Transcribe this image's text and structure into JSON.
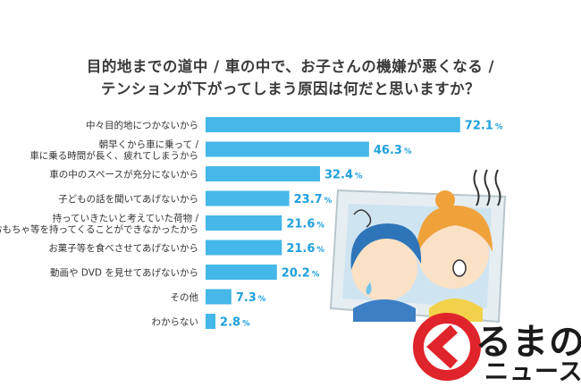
{
  "title_lines": [
    "目的地までの道中 / 車の中で、お子さんの機嫌が悪くなる /",
    "テンションが下がってしまう原因は何だと思いますか？"
  ],
  "chart_data": {
    "type": "bar",
    "orientation": "horizontal",
    "categories": [
      [
        "中々目的地につかないから"
      ],
      [
        "朝早くから車に乗って /",
        "車に乗る時間が長く、疲れてしまうから"
      ],
      [
        "車の中のスペースが充分にないから"
      ],
      [
        "子どもの話を聞いてあげないから"
      ],
      [
        "持っていきたいと考えていた荷物 /",
        "おもちゃ等を持ってくることができなかったから"
      ],
      [
        "お菓子等を食べさせてあげないから"
      ],
      [
        "動画や DVD を見せてあげないから"
      ],
      [
        "その他"
      ],
      [
        "わからない"
      ]
    ],
    "values": [
      72.1,
      46.3,
      32.4,
      23.7,
      21.6,
      21.6,
      20.2,
      7.3,
      2.8
    ],
    "value_labels": [
      "72.1",
      "46.3",
      "32.4",
      "23.7",
      "21.6",
      "21.6",
      "20.2",
      "7.3",
      "2.8"
    ],
    "unit": "%",
    "xlim": [
      0,
      100
    ],
    "bar_color": "#45b7e8",
    "value_color": "#1ea0dc"
  },
  "logo": {
    "text_top": "るまの",
    "text_bottom": "ニュース",
    "color": "#e0242b"
  }
}
